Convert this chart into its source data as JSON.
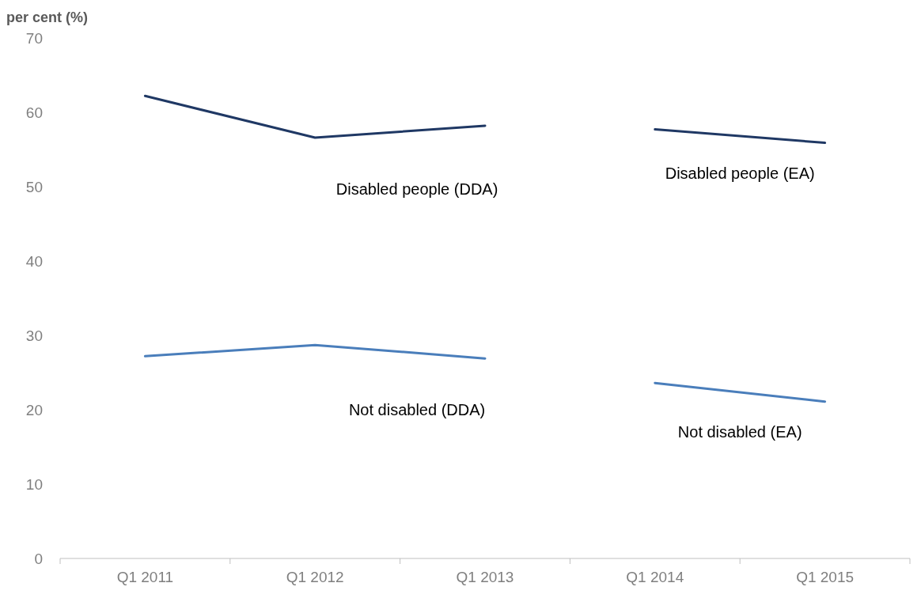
{
  "chart_data": {
    "type": "line",
    "ylabel": "per cent (%)",
    "categories": [
      "Q1 2011",
      "Q1 2012",
      "Q1 2013",
      "Q1 2014",
      "Q1 2015"
    ],
    "ylim": [
      0,
      70
    ],
    "yticks": [
      0,
      10,
      20,
      30,
      40,
      50,
      60,
      70
    ],
    "grid": false,
    "marker": "none",
    "series": [
      {
        "name": "Disabled people (DDA)",
        "color": "#1f3864",
        "values": [
          62.2,
          56.6,
          58.2,
          null,
          null
        ]
      },
      {
        "name": "Disabled people (EA)",
        "color": "#1f3864",
        "values": [
          null,
          null,
          null,
          57.7,
          55.9
        ]
      },
      {
        "name": "Not disabled (DDA)",
        "color": "#4a7ebb",
        "values": [
          27.2,
          28.7,
          26.9,
          null,
          null
        ]
      },
      {
        "name": "Not disabled (EA)",
        "color": "#4a7ebb",
        "values": [
          null,
          null,
          null,
          23.6,
          21.1
        ]
      }
    ]
  }
}
